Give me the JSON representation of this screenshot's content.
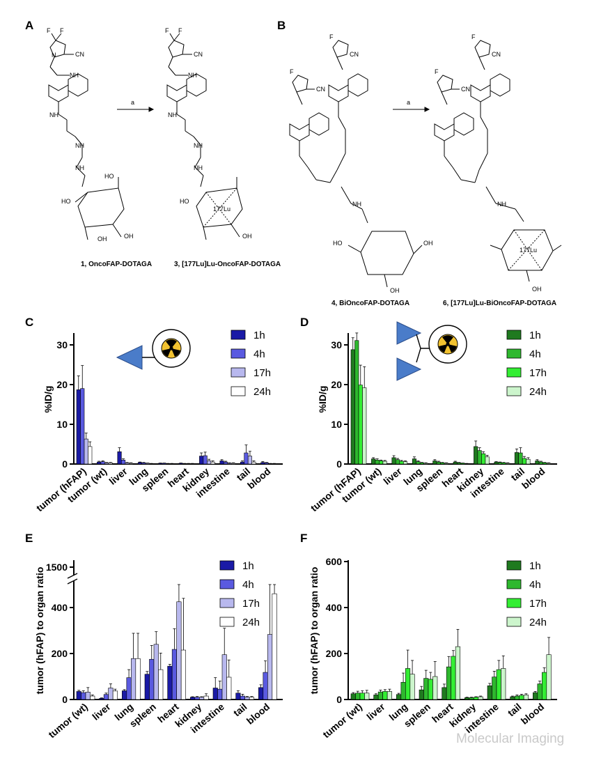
{
  "panels": {
    "A": "A",
    "B": "B",
    "C": "C",
    "D": "D",
    "E": "E",
    "F": "F"
  },
  "scheme": {
    "arrow_label_A": "a",
    "arrow_label_B": "a",
    "compound1": "1, OncoFAP-DOTAGA",
    "compound3": "3, [177Lu]Lu-OncoFAP-DOTAGA",
    "compound4": "4, BiOncoFAP-DOTAGA",
    "compound6": "6, [177Lu]Lu-BiOncoFAP-DOTAGA",
    "atoms": {
      "F": "F",
      "N": "N",
      "CN": "CN",
      "O": "O",
      "NH": "NH",
      "HO": "HO",
      "OH": "OH",
      "Lu": "177Lu"
    }
  },
  "watermark": "Molecular Imaging",
  "colors": {
    "blue": [
      "#1a1aa6",
      "#5a5ae0",
      "#b8b8ee",
      "#ffffff"
    ],
    "green": [
      "#1f7a1f",
      "#2eb82e",
      "#33ee33",
      "#ccf5cc"
    ],
    "ligand_triangle": "#4a7cc9",
    "radionuclide": "#f2c230"
  },
  "chart_data": [
    {
      "id": "C",
      "type": "bar",
      "ylabel": "%ID/g",
      "yticks": [
        "0",
        "10",
        "20",
        "30"
      ],
      "ylim": [
        0,
        33
      ],
      "categories": [
        "tumor (hFAP)",
        "tumor (wt)",
        "liver",
        "lung",
        "spleen",
        "heart",
        "kidney",
        "intestine",
        "tail",
        "blood"
      ],
      "series": [
        {
          "name": "1h",
          "values": [
            18.7,
            0.5,
            3.1,
            0.4,
            0.2,
            0.2,
            2.0,
            0.8,
            0.5,
            0.4
          ],
          "errors": [
            3.5,
            0.2,
            1.0,
            0.1,
            0.05,
            0.05,
            0.8,
            0.3,
            0.3,
            0.2
          ]
        },
        {
          "name": "4h",
          "values": [
            19.0,
            0.6,
            1.0,
            0.3,
            0.2,
            0.1,
            2.1,
            0.5,
            2.8,
            0.3
          ],
          "errors": [
            5.8,
            0.2,
            0.3,
            0.1,
            0.05,
            0.05,
            0.9,
            0.2,
            2.0,
            0.1
          ]
        },
        {
          "name": "17h",
          "values": [
            6.3,
            0.3,
            0.3,
            0.2,
            0.1,
            0.1,
            0.8,
            0.2,
            2.0,
            0.1
          ],
          "errors": [
            1.5,
            0.1,
            0.1,
            0.05,
            0.05,
            0.05,
            0.4,
            0.1,
            1.2,
            0.05
          ]
        },
        {
          "name": "24h",
          "values": [
            4.4,
            0.3,
            0.2,
            0.1,
            0.1,
            0.1,
            0.5,
            0.2,
            0.5,
            0.1
          ],
          "errors": [
            1.2,
            0.1,
            0.1,
            0.05,
            0.05,
            0.05,
            0.3,
            0.1,
            0.3,
            0.05
          ]
        }
      ]
    },
    {
      "id": "D",
      "type": "bar",
      "ylabel": "%ID/g",
      "yticks": [
        "0",
        "10",
        "20",
        "30"
      ],
      "ylim": [
        0,
        33
      ],
      "categories": [
        "tumor (hFAP)",
        "tumor (wt)",
        "liver",
        "lung",
        "spleen",
        "heart",
        "kidney",
        "intestine",
        "tail",
        "blood"
      ],
      "series": [
        {
          "name": "1h",
          "values": [
            28.8,
            1.3,
            1.6,
            1.3,
            0.8,
            0.5,
            4.4,
            0.5,
            2.9,
            0.8
          ],
          "errors": [
            3.0,
            0.3,
            0.5,
            0.5,
            0.3,
            0.2,
            1.4,
            0.1,
            0.9,
            0.3
          ]
        },
        {
          "name": "4h",
          "values": [
            31.1,
            1.0,
            1.1,
            0.6,
            0.5,
            0.3,
            3.4,
            0.4,
            2.8,
            0.5
          ],
          "errors": [
            3.2,
            0.3,
            0.3,
            0.2,
            0.2,
            0.1,
            0.7,
            0.1,
            1.3,
            0.2
          ]
        },
        {
          "name": "17h",
          "values": [
            19.9,
            0.8,
            0.7,
            0.3,
            0.3,
            0.2,
            2.6,
            0.3,
            1.4,
            0.3
          ],
          "errors": [
            5.0,
            0.2,
            0.2,
            0.1,
            0.1,
            0.05,
            0.5,
            0.1,
            0.5,
            0.1
          ]
        },
        {
          "name": "24h",
          "values": [
            19.2,
            0.7,
            0.6,
            0.2,
            0.2,
            0.1,
            1.8,
            0.2,
            1.2,
            0.2
          ],
          "errors": [
            5.3,
            0.2,
            0.2,
            0.1,
            0.1,
            0.05,
            0.4,
            0.1,
            0.4,
            0.1
          ]
        }
      ]
    },
    {
      "id": "E",
      "type": "bar",
      "ylabel": "tumor (hFAP) to organ ratio",
      "yticks": [
        "0",
        "200",
        "400",
        "1500"
      ],
      "ylim": [
        0,
        500
      ],
      "axis_break": true,
      "categories": [
        "tumor (wt)",
        "liver",
        "lung",
        "spleen",
        "heart",
        "kidney",
        "intestine",
        "tail",
        "blood"
      ],
      "series": [
        {
          "name": "1h",
          "values": [
            35,
            5,
            38,
            110,
            145,
            10,
            50,
            28,
            52
          ],
          "errors": [
            5,
            2,
            5,
            12,
            8,
            2,
            45,
            10,
            12
          ]
        },
        {
          "name": "4h",
          "values": [
            30,
            22,
            95,
            175,
            218,
            10,
            45,
            15,
            118
          ],
          "errors": [
            8,
            6,
            35,
            60,
            90,
            3,
            35,
            8,
            50
          ]
        },
        {
          "name": "17h",
          "values": [
            32,
            50,
            178,
            240,
            425,
            10,
            195,
            10,
            283
          ],
          "errors": [
            20,
            18,
            110,
            55,
            80,
            2,
            115,
            3,
            220
          ]
        },
        {
          "name": "24h",
          "values": [
            15,
            37,
            178,
            130,
            215,
            15,
            97,
            10,
            460
          ],
          "errors": [
            5,
            8,
            110,
            72,
            225,
            10,
            75,
            3,
            40
          ]
        }
      ]
    },
    {
      "id": "F",
      "type": "bar",
      "ylabel": "tumor (hFAP) to organ ratio",
      "yticks": [
        "0",
        "200",
        "400",
        "600"
      ],
      "ylim": [
        0,
        600
      ],
      "categories": [
        "tumor (wt)",
        "liver",
        "lung",
        "spleen",
        "heart",
        "kidney",
        "intestine",
        "tail",
        "blood"
      ],
      "series": [
        {
          "name": "1h",
          "values": [
            25,
            20,
            22,
            42,
            52,
            8,
            60,
            12,
            30
          ],
          "errors": [
            5,
            5,
            5,
            15,
            15,
            2,
            10,
            3,
            5
          ]
        },
        {
          "name": "4h",
          "values": [
            28,
            33,
            75,
            92,
            142,
            8,
            98,
            15,
            68
          ],
          "errors": [
            8,
            8,
            40,
            35,
            45,
            2,
            25,
            5,
            12
          ]
        },
        {
          "name": "17h",
          "values": [
            28,
            35,
            135,
            88,
            188,
            10,
            130,
            18,
            118
          ],
          "errors": [
            10,
            8,
            80,
            30,
            25,
            2,
            40,
            5,
            20
          ]
        },
        {
          "name": "24h",
          "values": [
            28,
            35,
            110,
            100,
            230,
            12,
            135,
            20,
            195
          ],
          "errors": [
            12,
            10,
            60,
            65,
            75,
            3,
            55,
            5,
            75
          ]
        }
      ]
    }
  ]
}
